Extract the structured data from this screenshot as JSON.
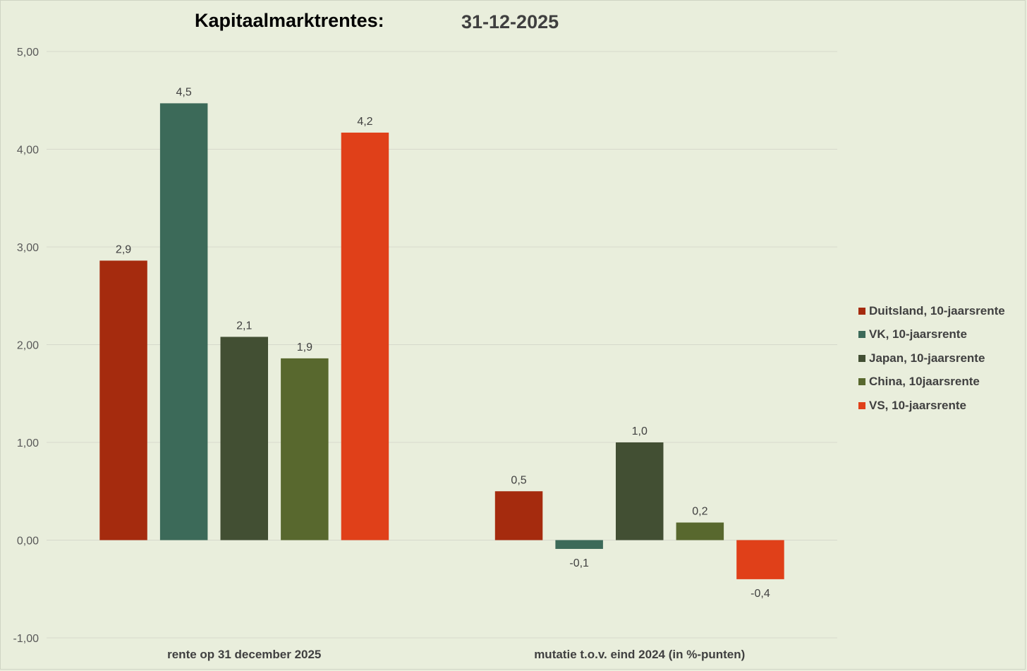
{
  "title": "Kapitaalmarktrentes:",
  "subtitle": "31-12-2025",
  "chart_data": {
    "type": "bar",
    "title": "Kapitaalmarktrentes:",
    "subtitle": "31-12-2025",
    "categories": [
      "rente op 31 december 2025",
      "mutatie t.o.v. eind 2024 (in %-punten)"
    ],
    "series": [
      {
        "name": "Duitsland, 10-jaarsrente",
        "color": "#a52b0e",
        "values": [
          2.86,
          0.5
        ],
        "labels": [
          "2,9",
          "0,5"
        ]
      },
      {
        "name": "VK, 10-jaarsrente",
        "color": "#3c6a59",
        "values": [
          4.47,
          -0.09
        ],
        "labels": [
          "4,5",
          "-0,1"
        ]
      },
      {
        "name": "Japan, 10-jaarsrente",
        "color": "#424f33",
        "values": [
          2.08,
          1.0
        ],
        "labels": [
          "2,1",
          "1,0"
        ]
      },
      {
        "name": "China, 10jaarsrente",
        "color": "#58682e",
        "values": [
          1.86,
          0.18
        ],
        "labels": [
          "1,9",
          "0,2"
        ]
      },
      {
        "name": "VS, 10-jaarsrente",
        "color": "#e04019",
        "values": [
          4.17,
          -0.4
        ],
        "labels": [
          "4,2",
          "-0,4"
        ]
      }
    ],
    "yticks": [
      "5,00",
      "4,00",
      "3,00",
      "2,00",
      "1,00",
      "0,00",
      "-1,00"
    ],
    "ylim": [
      -1,
      5
    ],
    "grid": true,
    "legend": "right"
  }
}
